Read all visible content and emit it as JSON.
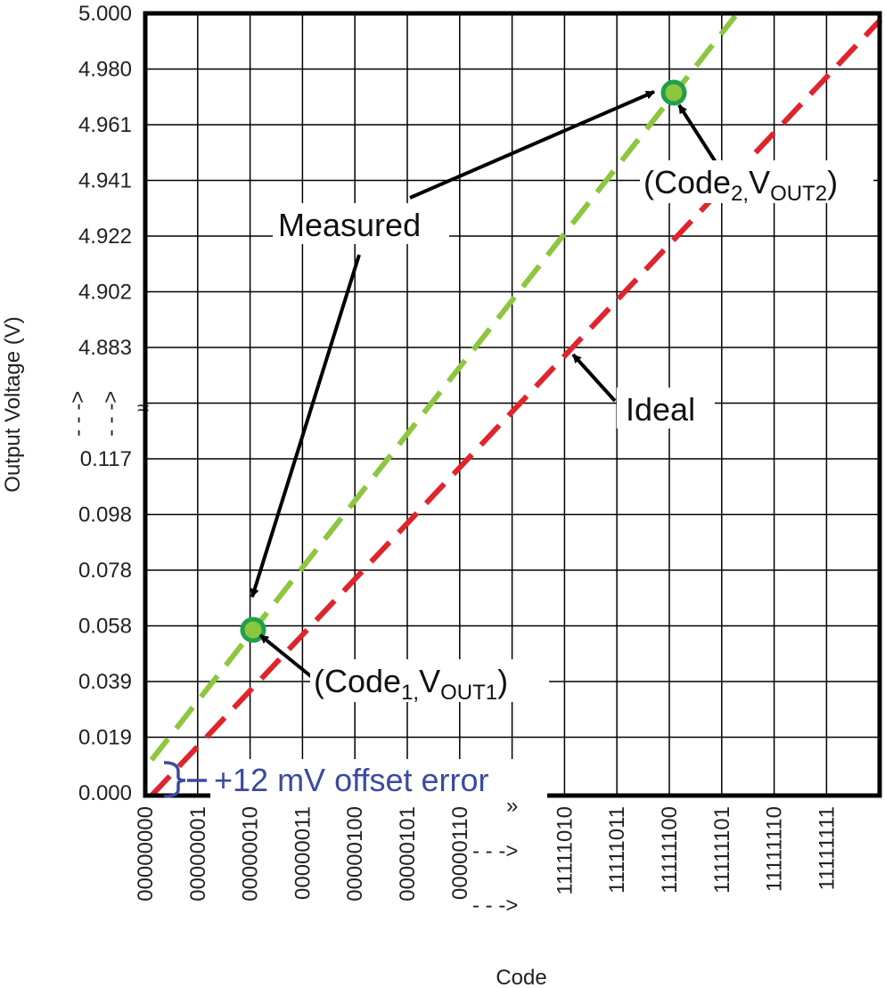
{
  "chart_data": {
    "type": "line",
    "xlabel": "Code",
    "ylabel": "Output Voltage (V)",
    "categories_left": [
      "00000000",
      "00000001",
      "00000010",
      "00000011",
      "00000100",
      "00000101",
      "00000110"
    ],
    "categories_right": [
      "11111010",
      "11111011",
      "11111100",
      "11111101",
      "11111110",
      "11111111"
    ],
    "yticks_top": [
      "5.000",
      "4.980",
      "4.961",
      "4.941",
      "4.922",
      "4.902",
      "4.883"
    ],
    "yticks_bottom": [
      "0.117",
      "0.098",
      "0.078",
      "0.058",
      "0.039",
      "0.019",
      "0.000"
    ],
    "axis_break_markers": {
      "y": "≈",
      "x": "»",
      "arrow": "- - ->"
    },
    "series": [
      {
        "name": "Measured",
        "color": "#8dc63f",
        "style": "dashed"
      },
      {
        "name": "Ideal",
        "color": "#e0242b",
        "style": "dashed"
      }
    ],
    "points": [
      {
        "code_parts": [
          "(Code",
          "1,",
          "V",
          "OUT1",
          ")"
        ],
        "code": "00000010",
        "voltage_v": 0.058
      },
      {
        "code_parts": [
          "(Code",
          "2,",
          "V",
          "OUT2",
          ")"
        ],
        "code": "11111100",
        "voltage_v": 4.971
      }
    ],
    "annotations": {
      "measured": "Measured",
      "ideal": "Ideal",
      "offset": "+12 mV offset error"
    },
    "colors": {
      "measured": "#8dc63f",
      "ideal": "#e0242b",
      "marker_fill": "#8cc63f",
      "marker_ring": "#1fa04a",
      "offset": "#3b4aa0"
    },
    "grid": true
  }
}
